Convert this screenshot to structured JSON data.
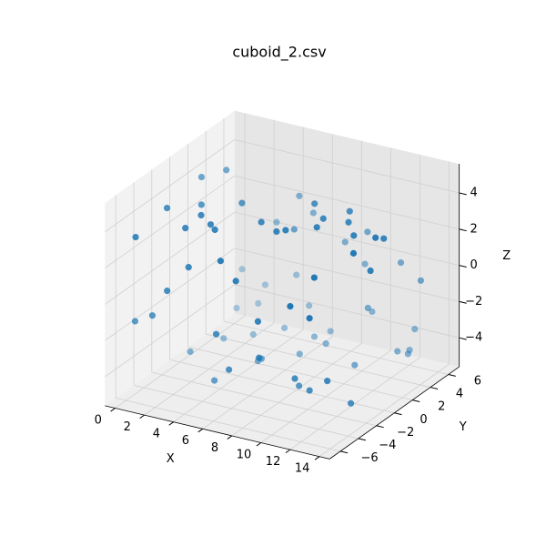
{
  "chart_data": {
    "type": "scatter3d",
    "title": "cuboid_2.csv",
    "x_label": "X",
    "y_label": "Y",
    "z_label": "Z",
    "color": "#1f77b4",
    "xlim": [
      -0.7,
      14.7
    ],
    "ylim": [
      -7.2,
      7.2
    ],
    "zlim": [
      -5.6,
      5.6
    ],
    "xticks": [
      0,
      2,
      4,
      6,
      8,
      10,
      12,
      14
    ],
    "yticks": [
      {
        "value": -6,
        "label": "−6"
      },
      {
        "value": -4,
        "label": "−4"
      },
      {
        "value": -2,
        "label": "−2"
      },
      0,
      2,
      4,
      6
    ],
    "zticks": [
      {
        "value": -4,
        "label": "−4"
      },
      {
        "value": -2,
        "label": "−2"
      },
      0,
      2,
      4
    ],
    "grid": true,
    "x": [
      0.5,
      1.2,
      2.0,
      3.1,
      4.0,
      5.2,
      6.1,
      7.0,
      8.3,
      9.1,
      10.2,
      11.0,
      12.4,
      13.1,
      13.8,
      0.8,
      1.9,
      2.7,
      3.6,
      4.8,
      5.5,
      6.7,
      7.6,
      8.8,
      9.7,
      10.6,
      11.8,
      12.7,
      13.5,
      0.3,
      1.5,
      2.4,
      3.3,
      4.4,
      5.9,
      6.3,
      7.3,
      8.1,
      9.4,
      10.9,
      11.3,
      12.1,
      13.3,
      14.0,
      0.9,
      2.2,
      3.8,
      5.0,
      6.5,
      7.8,
      9.0,
      10.4,
      11.6,
      12.9,
      13.6,
      1.1,
      2.9,
      4.6,
      6.0,
      7.4,
      8.6,
      9.9,
      11.2,
      12.5,
      13.9,
      0.6,
      2.5,
      4.2,
      5.7,
      7.1,
      8.4,
      10.0,
      11.5,
      13.0
    ],
    "y": [
      -5.8,
      3.2,
      -2.1,
      5.7,
      0.4,
      -4.6,
      2.8,
      -5.9,
      1.5,
      5.8,
      -3.3,
      0.9,
      -5.7,
      4.1,
      -1.2,
      5.6,
      -0.7,
      -5.8,
      2.3,
      -3.9,
      5.9,
      -1.8,
      4.4,
      -5.6,
      0.2,
      3.7,
      -4.2,
      5.5,
      -2.6,
      1.9,
      -5.5,
      4.8,
      -3.0,
      5.8,
      -0.9,
      -5.7,
      3.1,
      -2.4,
      5.6,
      -4.9,
      1.1,
      -0.3,
      5.2,
      -3.7,
      -2.9,
      5.9,
      -5.2,
      3.5,
      -1.5,
      5.7,
      -5.8,
      2.0,
      -4.4,
      4.6,
      0.6,
      4.5,
      -4.1,
      5.8,
      -5.7,
      1.3,
      -2.2,
      5.3,
      -5.9,
      3.9,
      -0.8,
      -5.9,
      0.8,
      -3.4,
      5.1,
      -5.3,
      2.6,
      -1.0,
      5.9,
      -4.7
    ],
    "z": [
      -1.2,
      4.1,
      -3.9,
      0.7,
      3.8,
      -4.0,
      1.9,
      -2.6,
      4.2,
      -0.5,
      -3.8,
      3.9,
      1.2,
      -4.1,
      2.5,
      -2.3,
      3.7,
      0.9,
      -4.2,
      4.0,
      1.6,
      -3.5,
      -4.0,
      0.3,
      4.1,
      -1.9,
      2.8,
      -3.3,
      3.9,
      4.0,
      -0.8,
      -3.6,
      4.2,
      -2.0,
      -4.1,
      3.2,
      -3.9,
      4.0,
      1.4,
      -2.7,
      -4.0,
      3.8,
      -0.4,
      -3.9,
      4.1,
      -3.0,
      2.2,
      -4.0,
      3.9,
      0.5,
      -1.6,
      4.0,
      -3.4,
      -4.1,
      3.6,
      -4.0,
      3.8,
      2.4,
      -0.9,
      -4.2,
      4.1,
      -2.8,
      1.7,
      -4.0,
      4.2,
      3.5,
      -4.1,
      4.0,
      -3.2,
      2.1,
      -3.9,
      4.1,
      0.0,
      -2.5
    ]
  }
}
